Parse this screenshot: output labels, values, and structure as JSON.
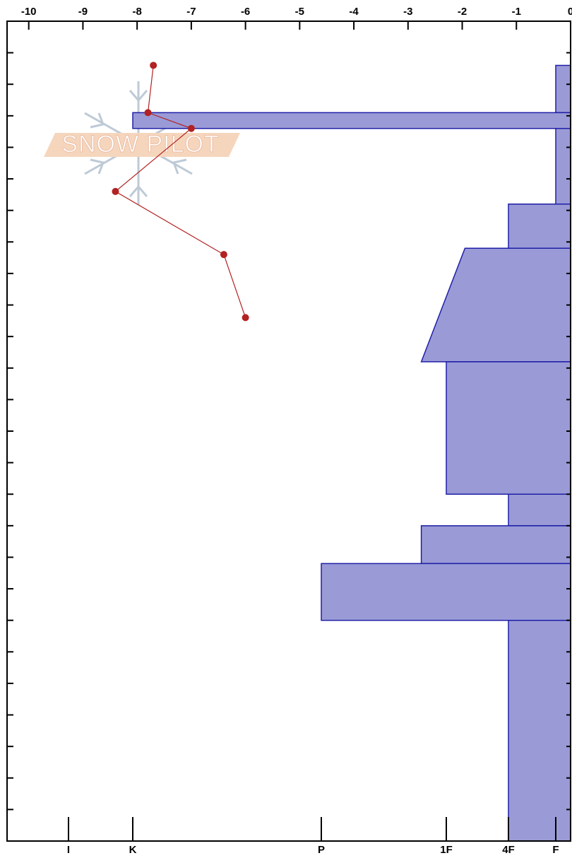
{
  "chart_data": {
    "type": "profile",
    "watermark": "SNOW PILOT",
    "xlim": [
      -10.4,
      0
    ],
    "xticks": [
      -10,
      -9,
      -8,
      -7,
      -6,
      -5,
      -4,
      -3,
      -2,
      -1,
      0
    ],
    "hardness_ticks": [
      {
        "value": 1,
        "label": "F"
      },
      {
        "value": 2,
        "label": "4F"
      },
      {
        "value": 3,
        "label": "1F"
      },
      {
        "value": 4,
        "label": "P"
      },
      {
        "value": 5,
        "label": "K"
      },
      {
        "value": 6,
        "label": "I"
      }
    ],
    "ylim": [
      0,
      130
    ],
    "yticks": [
      0,
      5,
      10,
      15,
      20,
      25,
      30,
      35,
      40,
      45,
      50,
      55,
      60,
      65,
      70,
      75,
      80,
      85,
      90,
      95,
      100,
      105,
      110,
      115,
      120,
      125,
      130
    ],
    "layers": {
      "color": "#9a9ad6",
      "edge": "#1f1fa8",
      "top": [
        123,
        115.5,
        113,
        101,
        94,
        76,
        55,
        50,
        44,
        35
      ],
      "bottom": [
        115.5,
        113,
        101,
        94,
        76,
        55,
        50,
        44,
        35,
        0
      ],
      "hardness_top": [
        1,
        5,
        1,
        2,
        2.7,
        3,
        2,
        3.2,
        4,
        2
      ],
      "hardness_bottom": [
        1,
        5,
        1,
        2,
        3.2,
        3,
        2,
        3.2,
        4,
        2
      ]
    },
    "temperature": {
      "color": "#b22222",
      "x": [
        -7.7,
        -7.8,
        -7.0,
        -8.4,
        -6.4,
        -6.0
      ],
      "y": [
        123,
        115.5,
        113,
        103,
        93,
        83
      ]
    }
  }
}
